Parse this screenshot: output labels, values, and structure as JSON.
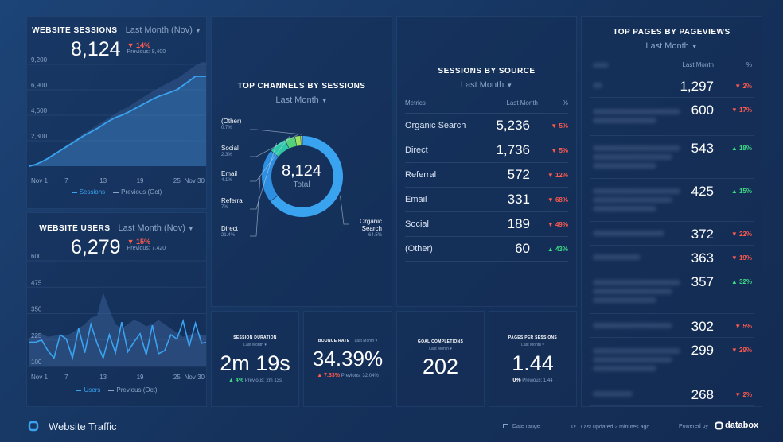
{
  "website_sessions": {
    "title": "WEBSITE SESSIONS",
    "period": "Last Month (Nov)",
    "value": "8,124",
    "change": "▼ 14%",
    "previous": "Previous: 9,400",
    "legend_current": "Sessions",
    "legend_previous": "Previous (Oct)",
    "chart_data": {
      "type": "area",
      "ylim": [
        0,
        9200
      ],
      "y_ticks": [
        "9,200",
        "6,900",
        "4,600",
        "2,300"
      ],
      "x_ticks": [
        "Nov 1",
        "7",
        "13",
        "19",
        "25",
        "Nov 30"
      ],
      "series": [
        {
          "name": "Sessions",
          "values": [
            0,
            150,
            400,
            700,
            1050,
            1400,
            1750,
            2100,
            2450,
            2800,
            3100,
            3400,
            3750,
            4100,
            4400,
            4600,
            4850,
            5150,
            5450,
            5750,
            6050,
            6300,
            6500,
            6700,
            6900,
            7300,
            7700,
            8124,
            8124,
            8124
          ]
        },
        {
          "name": "Previous (Oct)",
          "values": [
            0,
            180,
            450,
            780,
            1150,
            1500,
            1850,
            2250,
            2650,
            3000,
            3350,
            3700,
            4050,
            4400,
            4750,
            5050,
            5350,
            5700,
            6050,
            6400,
            6750,
            7050,
            7350,
            7650,
            7900,
            8300,
            8700,
            9100,
            9400,
            9400
          ]
        }
      ]
    }
  },
  "website_users": {
    "title": "WEBSITE USERS",
    "period": "Last Month (Nov)",
    "value": "6,279",
    "change": "▼ 15%",
    "previous": "Previous: 7,420",
    "legend_current": "Users",
    "legend_previous": "Previous (Oct)",
    "chart_data": {
      "type": "line",
      "ylim": [
        100,
        600
      ],
      "y_ticks": [
        "600",
        "475",
        "350",
        "225",
        "100"
      ],
      "x_ticks": [
        "Nov 1",
        "7",
        "13",
        "19",
        "25",
        "Nov 30"
      ],
      "series": [
        {
          "name": "Users",
          "values": [
            215,
            215,
            225,
            175,
            140,
            250,
            230,
            140,
            280,
            165,
            300,
            210,
            140,
            250,
            165,
            310,
            170,
            215,
            255,
            155,
            295,
            160,
            175,
            250,
            230,
            315,
            195,
            305,
            210,
            215
          ]
        },
        {
          "name": "Previous (Oct)",
          "values": [
            235,
            250,
            255,
            240,
            245,
            250,
            245,
            260,
            280,
            300,
            330,
            340,
            450,
            370,
            300,
            280,
            300,
            320,
            310,
            290,
            300,
            320,
            300,
            280,
            260,
            240,
            250,
            260,
            250,
            245
          ]
        }
      ]
    }
  },
  "top_channels": {
    "title": "TOP CHANNELS BY SESSIONS",
    "period": "Last Month",
    "center_value": "8,124",
    "center_label": "Total",
    "chart_data": {
      "type": "pie",
      "slices": [
        {
          "name": "Organic Search",
          "pct_label": "64.5%",
          "value": 64.5,
          "color": "#3aa3f0"
        },
        {
          "name": "Direct",
          "pct_label": "21.4%",
          "value": 21.4,
          "color": "#2e8fe0"
        },
        {
          "name": "Referral",
          "pct_label": "7%",
          "value": 7.0,
          "color": "#2fc7a6"
        },
        {
          "name": "Email",
          "pct_label": "4.1%",
          "value": 4.1,
          "color": "#55d17a"
        },
        {
          "name": "Social",
          "pct_label": "2.3%",
          "value": 2.3,
          "color": "#9be35e"
        },
        {
          "name": "(Other)",
          "pct_label": "0.7%",
          "value": 0.7,
          "color": "#e9e56a"
        }
      ]
    }
  },
  "sessions_by_source": {
    "title": "SESSIONS BY SOURCE",
    "period": "Last Month",
    "col_metrics": "Metrics",
    "col_last": "Last Month",
    "col_pct": "%",
    "rows": [
      {
        "label": "Organic Search",
        "value": "5,236",
        "change": "▼ 5%",
        "dir": "down"
      },
      {
        "label": "Direct",
        "value": "1,736",
        "change": "▼ 5%",
        "dir": "down"
      },
      {
        "label": "Referral",
        "value": "572",
        "change": "▼ 12%",
        "dir": "down"
      },
      {
        "label": "Email",
        "value": "331",
        "change": "▼ 68%",
        "dir": "down"
      },
      {
        "label": "Social",
        "value": "189",
        "change": "▼ 49%",
        "dir": "down"
      },
      {
        "label": "(Other)",
        "value": "60",
        "change": "▲ 43%",
        "dir": "up"
      }
    ]
  },
  "top_pages": {
    "title": "TOP PAGES BY PAGEVIEWS",
    "period": "Last Month",
    "col_last": "Last Month",
    "col_pct": "%",
    "rows": [
      {
        "value": "1,297",
        "change": "▼ 2%",
        "dir": "down"
      },
      {
        "value": "600",
        "change": "▼ 17%",
        "dir": "down"
      },
      {
        "value": "543",
        "change": "▲ 18%",
        "dir": "up"
      },
      {
        "value": "425",
        "change": "▲ 15%",
        "dir": "up"
      },
      {
        "value": "372",
        "change": "▼ 22%",
        "dir": "down"
      },
      {
        "value": "363",
        "change": "▼ 19%",
        "dir": "down"
      },
      {
        "value": "357",
        "change": "▲ 32%",
        "dir": "up"
      },
      {
        "value": "302",
        "change": "▼ 5%",
        "dir": "down"
      },
      {
        "value": "299",
        "change": "▼ 29%",
        "dir": "down"
      },
      {
        "value": "268",
        "change": "▼ 2%",
        "dir": "down"
      }
    ]
  },
  "kpis": {
    "session_duration": {
      "title": "SESSION DURATION",
      "period": "Last Month",
      "value": "2m 19s",
      "change": "▲ 4%",
      "previous": "Previous: 2m 13s"
    },
    "bounce_rate": {
      "title": "BOUNCE RATE",
      "period": "Last Month",
      "value": "34.39%",
      "change": "▲ 7.33%",
      "previous": "Previous: 32.04%"
    },
    "goal_completions": {
      "title": "GOAL COMPLETIONS",
      "period": "Last Month",
      "value": "202"
    },
    "pages_per_session": {
      "title": "PAGES PER SESSIONS",
      "period": "Last Month",
      "value": "1.44",
      "change": "0%",
      "previous": "Previous: 1.44"
    }
  },
  "footer": {
    "title": "Website Traffic",
    "date_range": "Date range",
    "last_updated": "Last updated 2 minutes ago",
    "powered_by": "Powered by",
    "brand": "databox"
  },
  "colors": {
    "accent": "#3aa3f0",
    "down": "#ff5a4e",
    "up": "#3ddc84",
    "previous_line": "#5c7aa6"
  }
}
